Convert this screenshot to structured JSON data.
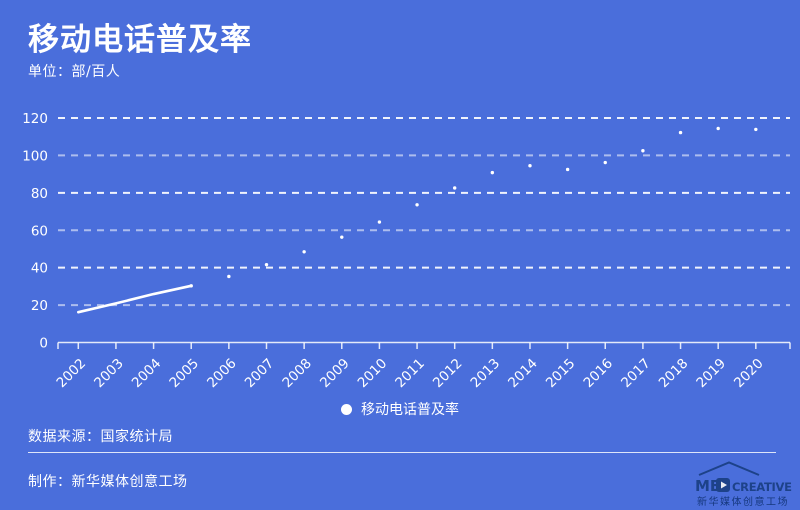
{
  "header": {
    "title": "移动电话普及率",
    "unit_label": "单位：部/百人"
  },
  "chart_data": {
    "type": "line",
    "title": "移动电话普及率",
    "ylabel_unit": "部/百人",
    "x": [
      "2002",
      "2003",
      "2004",
      "2005",
      "2006",
      "2007",
      "2008",
      "2009",
      "2010",
      "2011",
      "2012",
      "2013",
      "2014",
      "2015",
      "2016",
      "2017",
      "2018",
      "2019",
      "2020"
    ],
    "series": [
      {
        "name": "移动电话普及率",
        "color": "#ffffff",
        "values": [
          16.2,
          20.9,
          25.9,
          30.3,
          35.3,
          41.6,
          48.5,
          56.3,
          64.4,
          73.6,
          82.6,
          90.8,
          94.5,
          92.5,
          96.2,
          102.5,
          112.2,
          114.4,
          113.9
        ]
      }
    ],
    "ylim": [
      0,
      120
    ],
    "yticks": [
      0,
      20,
      40,
      60,
      80,
      100,
      120
    ],
    "grid": "horizontal-dashed",
    "legend_position": "bottom-center",
    "x_label_rotation": -45,
    "line_drawn_through_index": 3,
    "marker_from_index": 3
  },
  "legend": {
    "label": "移动电话普及率"
  },
  "footer": {
    "source": "数据来源：国家统计局",
    "credit": "制作：新华媒体创意工场",
    "logo": {
      "brand_left": "ME",
      "brand_right": "CREATIVE",
      "subtext": "新华媒体创意工场",
      "icon": "play-button",
      "color": "#1d4289"
    }
  },
  "colors": {
    "background": "#4a6edb",
    "text": "#ffffff",
    "grid_bright": "rgba(255,255,255,0.92)",
    "grid_dim": "rgba(255,255,255,0.55)",
    "axis": "rgba(255,255,255,0.85)",
    "logo_navy": "#1d4289"
  }
}
